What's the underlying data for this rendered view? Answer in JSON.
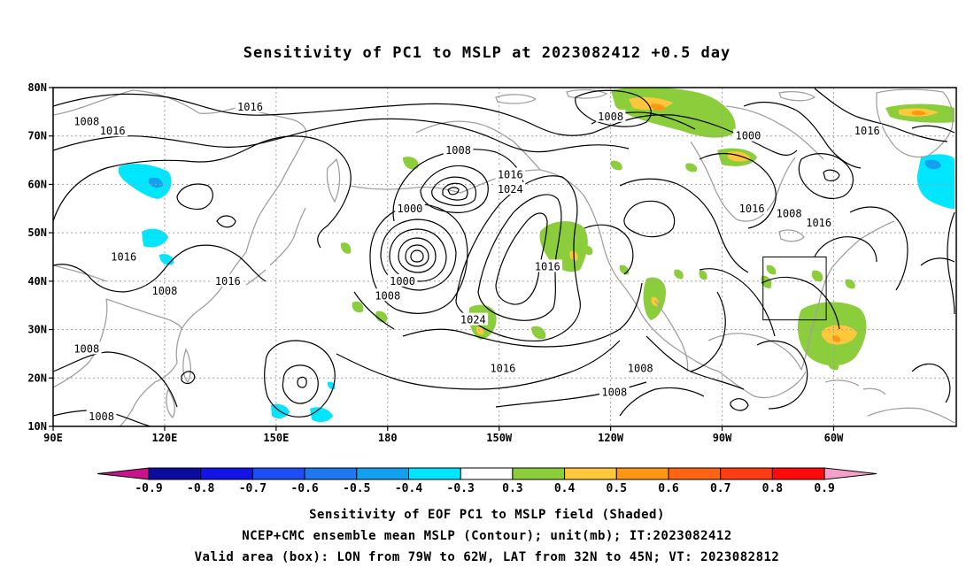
{
  "title": "Sensitivity of PC1 to MSLP at 2023082412 +0.5 day",
  "map": {
    "lat_labels": [
      "80N",
      "70N",
      "60N",
      "50N",
      "40N",
      "30N",
      "20N",
      "10N"
    ],
    "lon_labels": [
      "90E",
      "120E",
      "150E",
      "180",
      "150W",
      "120W",
      "90W",
      "60W"
    ],
    "contour_labels": [
      {
        "text": "1016",
        "lon": 143,
        "lat": 76
      },
      {
        "text": "1008",
        "lon": 99,
        "lat": 73
      },
      {
        "text": "1016",
        "lon": 106,
        "lat": 71
      },
      {
        "text": "1008",
        "lon": 199,
        "lat": 67
      },
      {
        "text": "1016",
        "lon": 213,
        "lat": 62
      },
      {
        "text": "1024",
        "lon": 213,
        "lat": 59
      },
      {
        "text": "1008",
        "lon": 240,
        "lat": 74
      },
      {
        "text": "1000",
        "lon": 277,
        "lat": 70
      },
      {
        "text": "1000",
        "lon": 186,
        "lat": 55
      },
      {
        "text": "1016",
        "lon": 278,
        "lat": 55
      },
      {
        "text": "1008",
        "lon": 288,
        "lat": 54
      },
      {
        "text": "1016",
        "lon": 296,
        "lat": 52
      },
      {
        "text": "1016",
        "lon": 309,
        "lat": 71
      },
      {
        "text": "1016",
        "lon": 109,
        "lat": 45
      },
      {
        "text": "1016",
        "lon": 223,
        "lat": 43
      },
      {
        "text": "1016",
        "lon": 137,
        "lat": 40
      },
      {
        "text": "1000",
        "lon": 184,
        "lat": 40
      },
      {
        "text": "1008",
        "lon": 180,
        "lat": 37
      },
      {
        "text": "1008",
        "lon": 120,
        "lat": 38
      },
      {
        "text": "1024",
        "lon": 203,
        "lat": 32
      },
      {
        "text": "1008",
        "lon": 99,
        "lat": 26
      },
      {
        "text": "1016",
        "lon": 211,
        "lat": 22
      },
      {
        "text": "1008",
        "lon": 248,
        "lat": 22
      },
      {
        "text": "1008",
        "lon": 241,
        "lat": 17
      },
      {
        "text": "1008",
        "lon": 103,
        "lat": 12
      }
    ],
    "valid_box": {
      "lon_min": 281,
      "lon_max": 298,
      "lat_min": 32,
      "lat_max": 45
    },
    "contour_color": "#000000",
    "coast_color": "#a0a0a0",
    "grid_color": "#a0a0a0"
  },
  "colorbar": {
    "labels": [
      "-0.9",
      "-0.8",
      "-0.7",
      "-0.6",
      "-0.5",
      "-0.4",
      "-0.3",
      "0.3",
      "0.4",
      "0.5",
      "0.6",
      "0.7",
      "0.8",
      "0.9"
    ],
    "colors": [
      "#0b0ba0",
      "#1414e6",
      "#1e4cf5",
      "#1e78f0",
      "#14a0f0",
      "#00e6ff",
      "#ffffff",
      "#8ccd3c",
      "#ffc83c",
      "#ff9614",
      "#ff6414",
      "#ff3c14",
      "#ff0a0a"
    ],
    "left_arrow_color": "#c8148c",
    "right_arrow_color": "#f5a0c8"
  },
  "caption": {
    "line1": "Sensitivity of EOF PC1 to MSLP field (Shaded)",
    "line2": "NCEP+CMC ensemble mean MSLP (Contour); unit(mb); IT:2023082412",
    "line3": "Valid area (box): LON from 79W to 62W, LAT from 32N to 45N; VT: 2023082812"
  }
}
